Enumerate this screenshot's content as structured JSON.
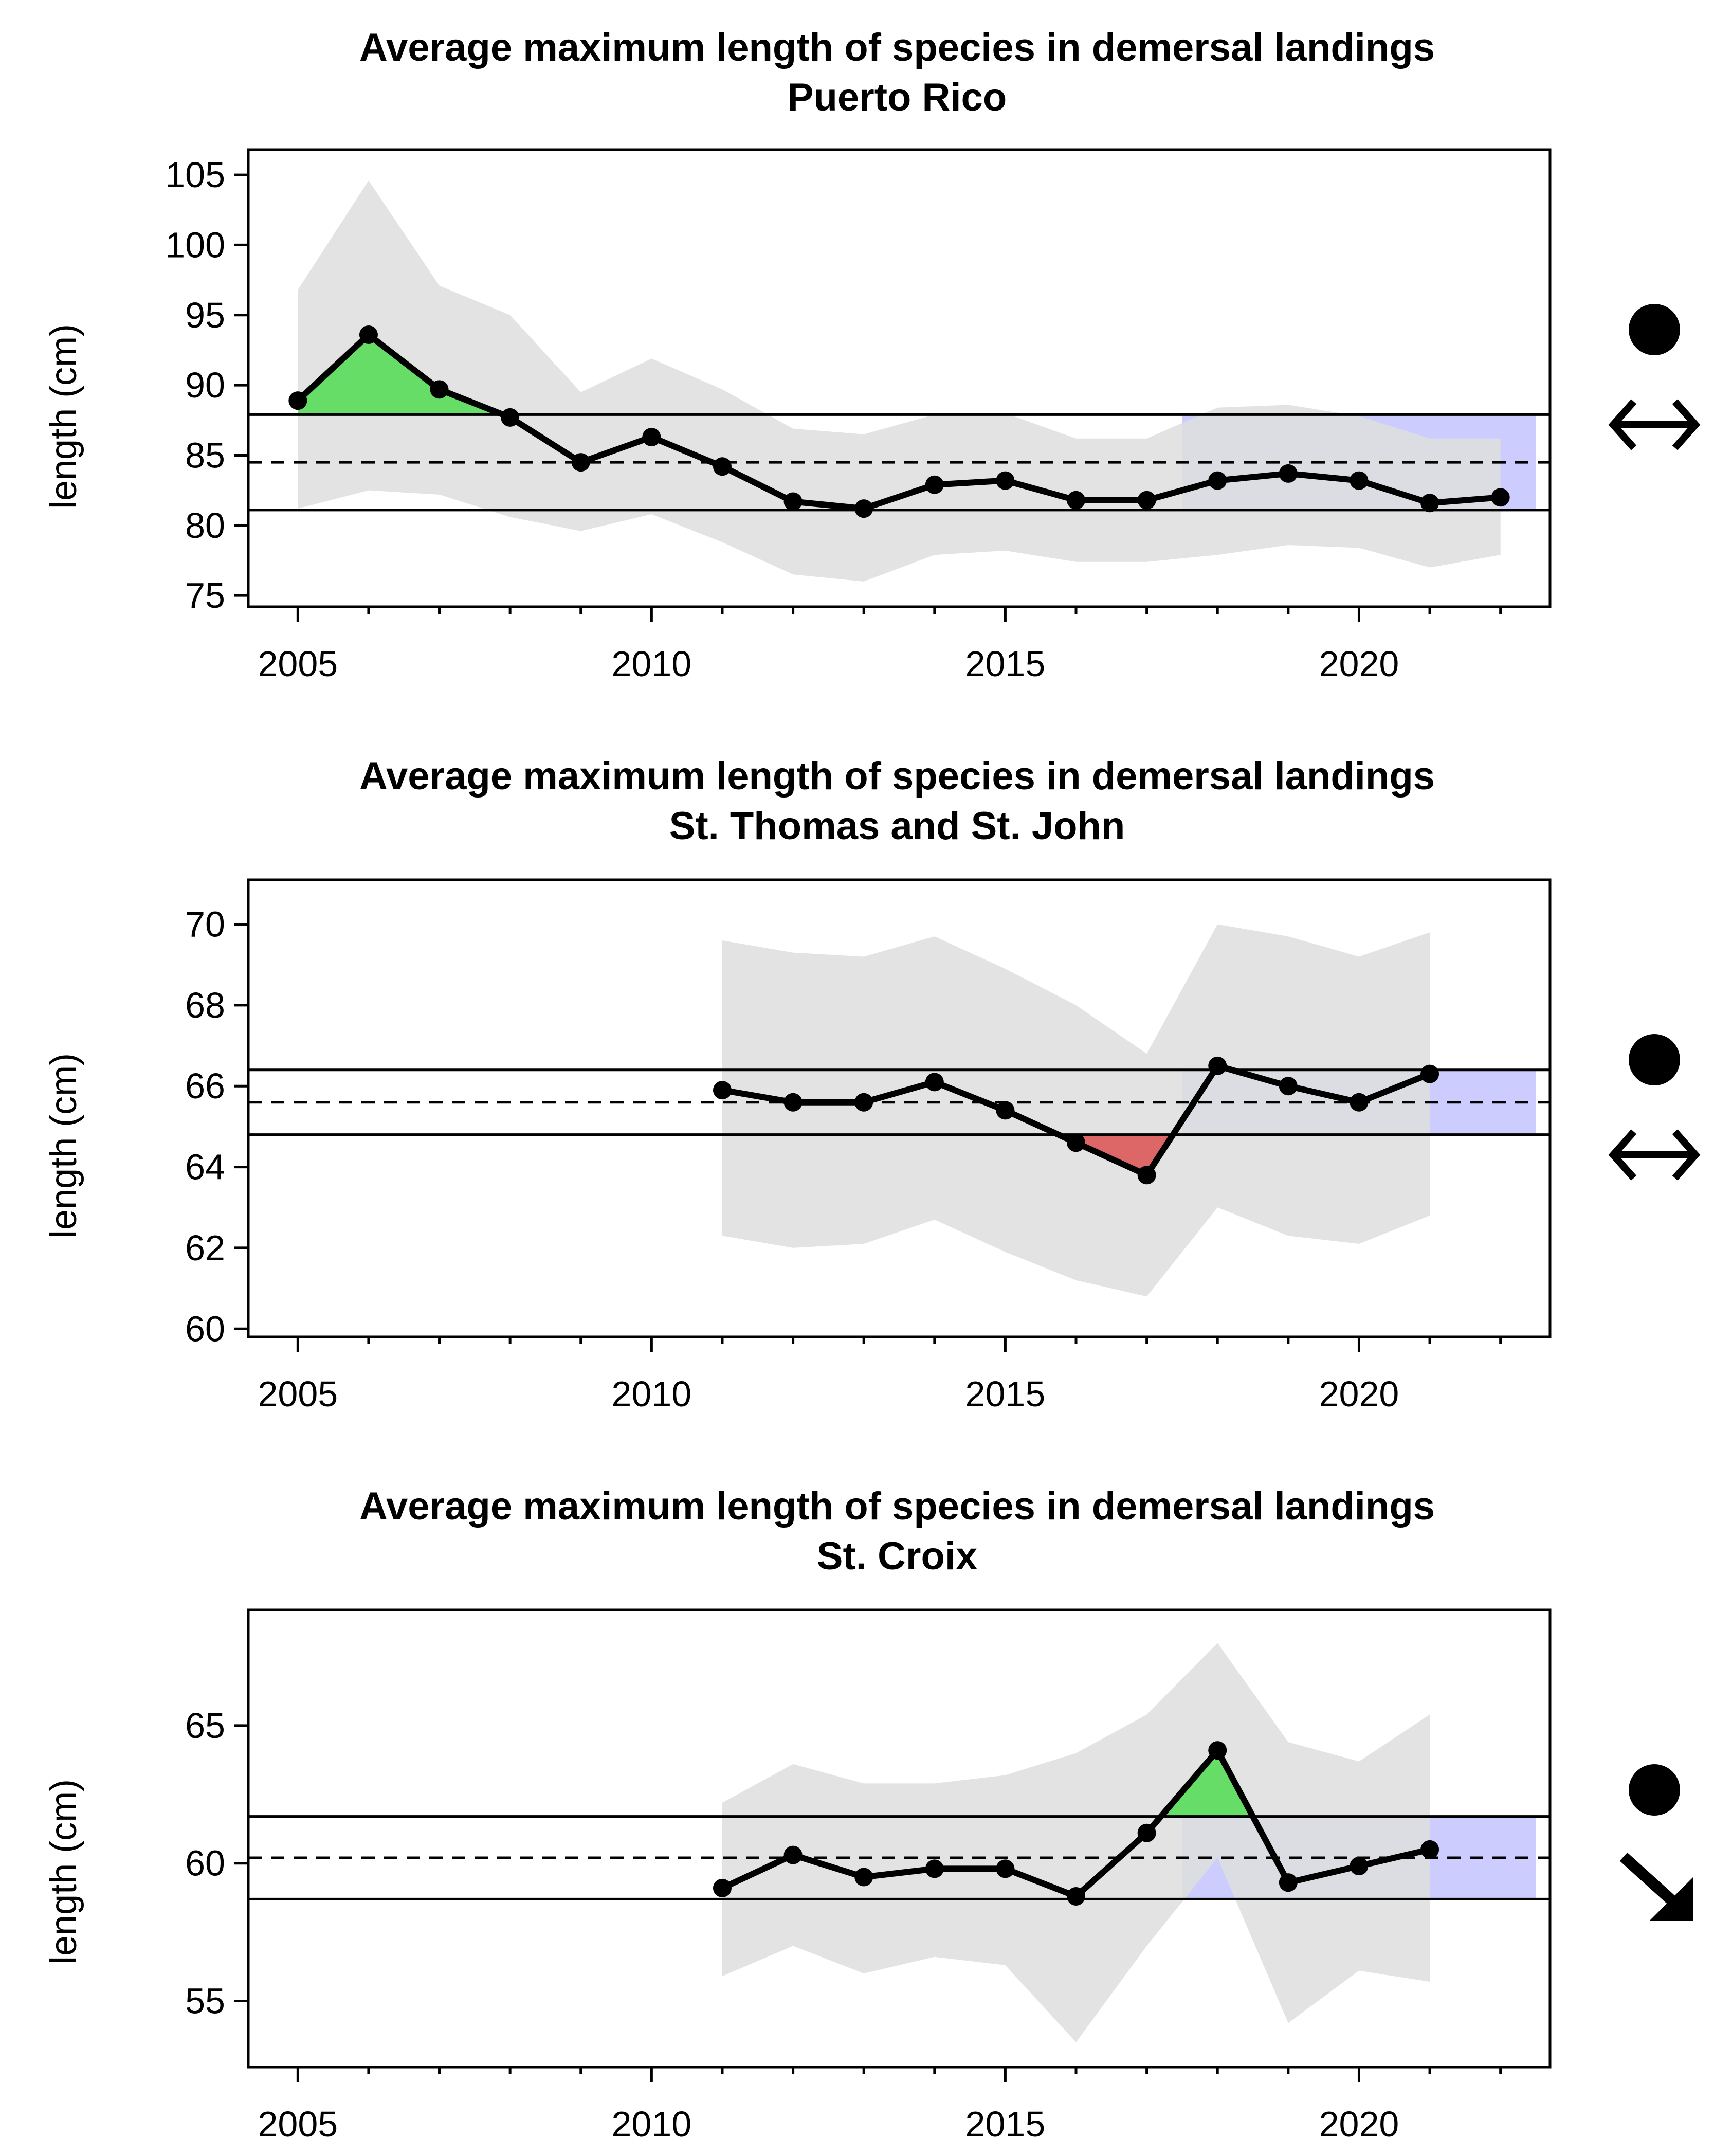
{
  "colors": {
    "ci_band": "#dedede",
    "recent_shade": "#ccccff",
    "above_fill": "#66dd66",
    "below_fill": "#dd6666",
    "line": "#000000"
  },
  "chart_data": [
    {
      "type": "line",
      "title": "Average maximum length of species in demersal landings",
      "subtitle": "Puerto Rico",
      "xlabel": "",
      "ylabel": "length (cm)",
      "xlim": [
        2004.3,
        2022.7
      ],
      "ylim": [
        74.2,
        106.8
      ],
      "xticks": [
        2005,
        2010,
        2015,
        2020
      ],
      "yticks": [
        75,
        80,
        85,
        90,
        95,
        100,
        105
      ],
      "grid": false,
      "x": [
        2005,
        2006,
        2007,
        2008,
        2009,
        2010,
        2011,
        2012,
        2013,
        2014,
        2015,
        2016,
        2017,
        2018,
        2019,
        2020,
        2021,
        2022
      ],
      "series": [
        {
          "values": [
            88.9,
            93.6,
            89.7,
            87.7,
            84.5,
            86.3,
            84.2,
            81.7,
            81.2,
            82.9,
            83.2,
            81.8,
            81.8,
            83.2,
            83.7,
            83.2,
            81.6,
            82.0
          ]
        }
      ],
      "ci_upper": [
        96.8,
        104.6,
        97.1,
        95.0,
        89.5,
        91.9,
        89.7,
        86.9,
        86.5,
        87.9,
        88.0,
        86.2,
        86.2,
        88.4,
        88.6,
        87.8,
        86.2,
        86.2
      ],
      "ci_lower": [
        81.2,
        82.5,
        82.2,
        80.6,
        79.6,
        80.8,
        78.8,
        76.5,
        76.0,
        77.9,
        78.2,
        77.4,
        77.4,
        77.9,
        78.6,
        78.4,
        77.0,
        77.9
      ],
      "mean": 84.5,
      "upper_sd": 87.9,
      "lower_sd": 81.1,
      "recent_window": [
        2017.5,
        2022.5
      ],
      "trend_symbols": [
        "mean-status-circle",
        "trend-flat-arrow"
      ]
    },
    {
      "type": "line",
      "title": "Average maximum length of species in demersal landings",
      "subtitle": "St. Thomas and St. John",
      "xlabel": "",
      "ylabel": "length (cm)",
      "xlim": [
        2004.3,
        2022.7
      ],
      "ylim": [
        59.8,
        71.1
      ],
      "xticks": [
        2005,
        2010,
        2015,
        2020
      ],
      "yticks": [
        60,
        62,
        64,
        66,
        68,
        70
      ],
      "grid": false,
      "x": [
        2011,
        2012,
        2013,
        2014,
        2015,
        2016,
        2017,
        2018,
        2019,
        2020,
        2021
      ],
      "series": [
        {
          "values": [
            65.9,
            65.6,
            65.6,
            66.1,
            65.4,
            64.6,
            63.8,
            66.5,
            66.0,
            65.6,
            66.3
          ]
        }
      ],
      "ci_upper": [
        69.6,
        69.3,
        69.2,
        69.7,
        68.9,
        68.0,
        66.8,
        70.0,
        69.7,
        69.2,
        69.8
      ],
      "ci_lower": [
        62.3,
        62.0,
        62.1,
        62.7,
        61.9,
        61.2,
        60.8,
        63.0,
        62.3,
        62.1,
        62.8
      ],
      "mean": 65.6,
      "upper_sd": 66.4,
      "lower_sd": 64.8,
      "recent_window": [
        2017.5,
        2022.5
      ],
      "trend_symbols": [
        "mean-status-circle",
        "trend-flat-arrow"
      ]
    },
    {
      "type": "line",
      "title": "Average maximum length of species in demersal landings",
      "subtitle": "St. Croix",
      "xlabel": "",
      "ylabel": "length (cm)",
      "xlim": [
        2004.3,
        2022.7
      ],
      "ylim": [
        52.6,
        69.2
      ],
      "xticks": [
        2005,
        2010,
        2015,
        2020
      ],
      "yticks": [
        55,
        60,
        65
      ],
      "grid": false,
      "x": [
        2011,
        2012,
        2013,
        2014,
        2015,
        2016,
        2017,
        2018,
        2019,
        2020,
        2021
      ],
      "series": [
        {
          "values": [
            59.1,
            60.3,
            59.5,
            59.8,
            59.8,
            58.8,
            61.1,
            64.1,
            59.3,
            59.9,
            60.5
          ]
        }
      ],
      "ci_upper": [
        62.2,
        63.6,
        62.9,
        62.9,
        63.2,
        64.0,
        65.4,
        68.0,
        64.4,
        63.7,
        65.4
      ],
      "ci_lower": [
        55.9,
        57.0,
        56.0,
        56.6,
        56.3,
        53.5,
        57.0,
        60.2,
        54.2,
        56.1,
        55.7
      ],
      "mean": 60.2,
      "upper_sd": 61.7,
      "lower_sd": 58.7,
      "recent_window": [
        2017.5,
        2022.5
      ],
      "trend_symbols": [
        "mean-status-circle",
        "trend-down-arrow"
      ]
    }
  ]
}
